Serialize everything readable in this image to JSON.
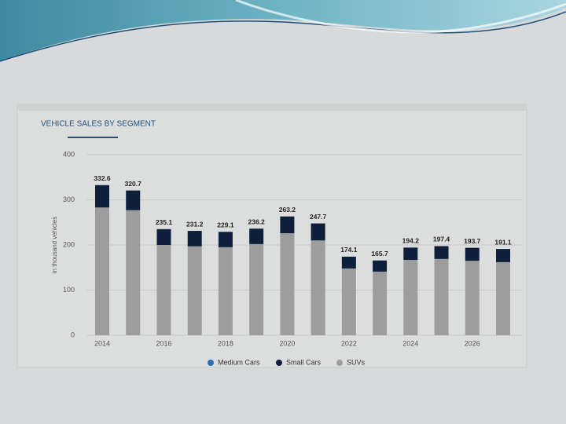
{
  "chart_data": {
    "type": "stacked-bar",
    "title": "VEHICLE SALES BY SEGMENT",
    "y_label": "in thousand vehicles",
    "categories": [
      "2014",
      null,
      "2016",
      null,
      "2018",
      null,
      "2020",
      null,
      "2022",
      null,
      "2024",
      null,
      "2026",
      null
    ],
    "series": [
      {
        "name": "Medium Cars",
        "color": "#2f6db5",
        "values": [
          0,
          0,
          0,
          0,
          0,
          0,
          0,
          0,
          0,
          0,
          0,
          0,
          0,
          0
        ]
      },
      {
        "name": "Small Cars",
        "color": "#0e1f3b",
        "values": [
          49.6,
          43.7,
          35.1,
          34.2,
          34.1,
          34.2,
          37.2,
          37.7,
          26.1,
          24.7,
          27.2,
          28.4,
          28.7,
          29.1
        ]
      },
      {
        "name": "SUVs",
        "color": "#9d9d9d",
        "values": [
          283,
          277,
          200,
          197,
          195,
          202,
          226,
          210,
          148,
          141,
          167,
          169,
          165,
          162
        ]
      }
    ],
    "totals": [
      332.6,
      320.7,
      235.1,
      231.2,
      229.1,
      236.2,
      263.2,
      247.7,
      174.1,
      165.7,
      194.2,
      197.4,
      193.7,
      191.1
    ],
    "ylim": [
      0,
      400
    ],
    "yticks": [
      0,
      100,
      200,
      300,
      400
    ],
    "grid": true
  }
}
